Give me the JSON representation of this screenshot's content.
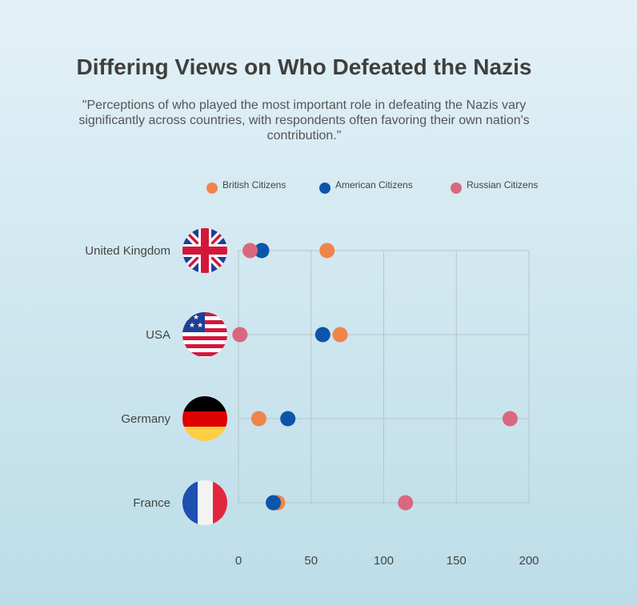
{
  "title": "Differing Views on Who Defeated the Nazis",
  "subtitle": "\"Perceptions of who played the most important role in defeating the Nazis vary significantly across countries, with respondents often favoring their own nation's contribution.\"",
  "chart_data": {
    "type": "scatter",
    "categories": [
      "United Kingdom",
      "USA",
      "Germany",
      "France"
    ],
    "flags": [
      "uk-flag",
      "usa-flag",
      "germany-flag",
      "france-flag"
    ],
    "series": [
      {
        "name": "British Citizens",
        "color": "#f0854a",
        "values": [
          61,
          70,
          14,
          27
        ]
      },
      {
        "name": "American Citizens",
        "color": "#0b56a8",
        "values": [
          16,
          58,
          34,
          24
        ]
      },
      {
        "name": "Russian Citizens",
        "color": "#d9687e",
        "values": [
          8,
          1,
          187,
          115
        ]
      }
    ],
    "xticks": [
      0,
      50,
      100,
      150,
      200
    ],
    "xlim": [
      0,
      200
    ],
    "grid": true,
    "legend": "top"
  }
}
